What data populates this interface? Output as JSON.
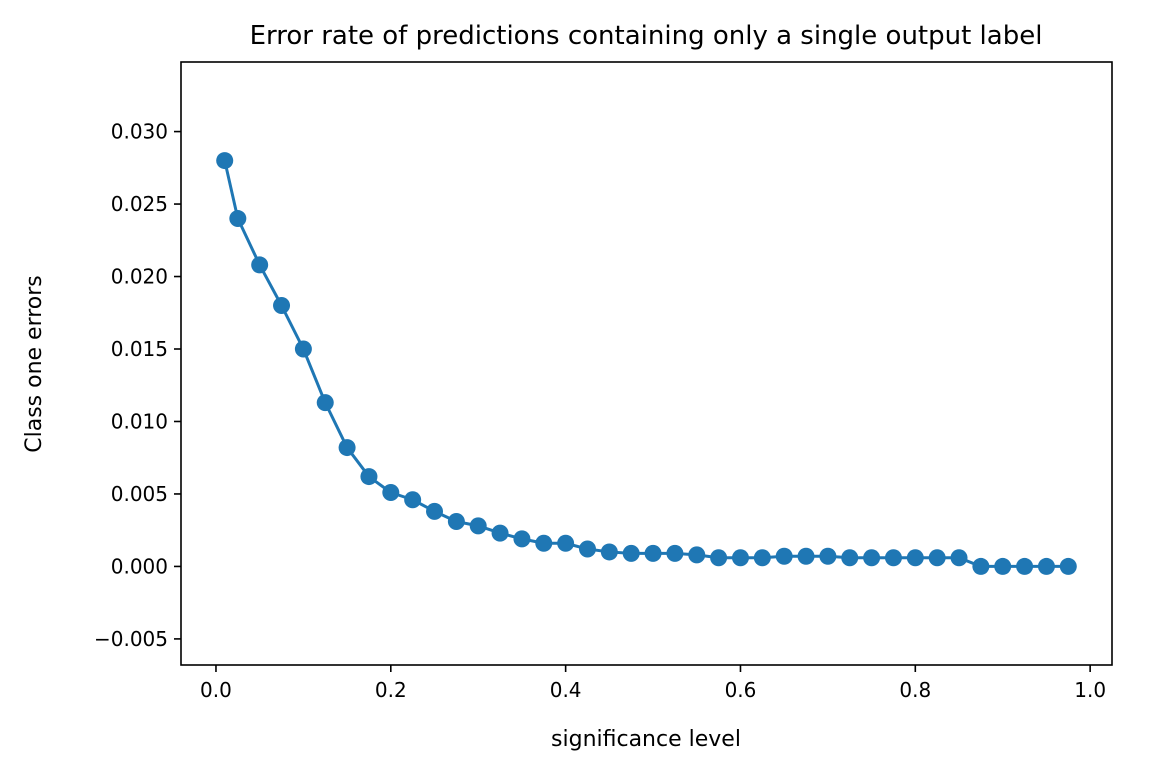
{
  "chart_data": {
    "type": "line",
    "title": "Error rate of predictions containing only a single output label",
    "xlabel": "significance level",
    "ylabel": "Class one errors",
    "xlim": [
      -0.04,
      1.025
    ],
    "ylim": [
      -0.0068,
      0.0348
    ],
    "xticks": [
      0.0,
      0.2,
      0.4,
      0.6,
      0.8,
      1.0
    ],
    "xtick_labels": [
      "0.0",
      "0.2",
      "0.4",
      "0.6",
      "0.8",
      "1.0"
    ],
    "yticks": [
      -0.005,
      0.0,
      0.005,
      0.01,
      0.015,
      0.02,
      0.025,
      0.03
    ],
    "ytick_labels": [
      "−0.005",
      "0.000",
      "0.005",
      "0.010",
      "0.015",
      "0.020",
      "0.025",
      "0.030"
    ],
    "grid": false,
    "legend": "none",
    "marker": "circle",
    "series_color": "#1f77b4",
    "x": [
      0.01,
      0.025,
      0.05,
      0.075,
      0.1,
      0.125,
      0.15,
      0.175,
      0.2,
      0.225,
      0.25,
      0.275,
      0.3,
      0.325,
      0.35,
      0.375,
      0.4,
      0.425,
      0.45,
      0.475,
      0.5,
      0.525,
      0.55,
      0.575,
      0.6,
      0.625,
      0.65,
      0.675,
      0.7,
      0.725,
      0.75,
      0.775,
      0.8,
      0.825,
      0.85,
      0.875,
      0.9,
      0.925,
      0.95,
      0.975
    ],
    "y": [
      0.028,
      0.024,
      0.0208,
      0.018,
      0.015,
      0.0113,
      0.0082,
      0.0062,
      0.0051,
      0.0046,
      0.0038,
      0.0031,
      0.0028,
      0.0023,
      0.0019,
      0.0016,
      0.0016,
      0.0012,
      0.001,
      0.0009,
      0.0009,
      0.0009,
      0.0008,
      0.0006,
      0.0006,
      0.0006,
      0.0007,
      0.0007,
      0.0007,
      0.0006,
      0.0006,
      0.0006,
      0.0006,
      0.0006,
      0.0006,
      0.0,
      0.0,
      0.0,
      0.0,
      0.0
    ]
  }
}
